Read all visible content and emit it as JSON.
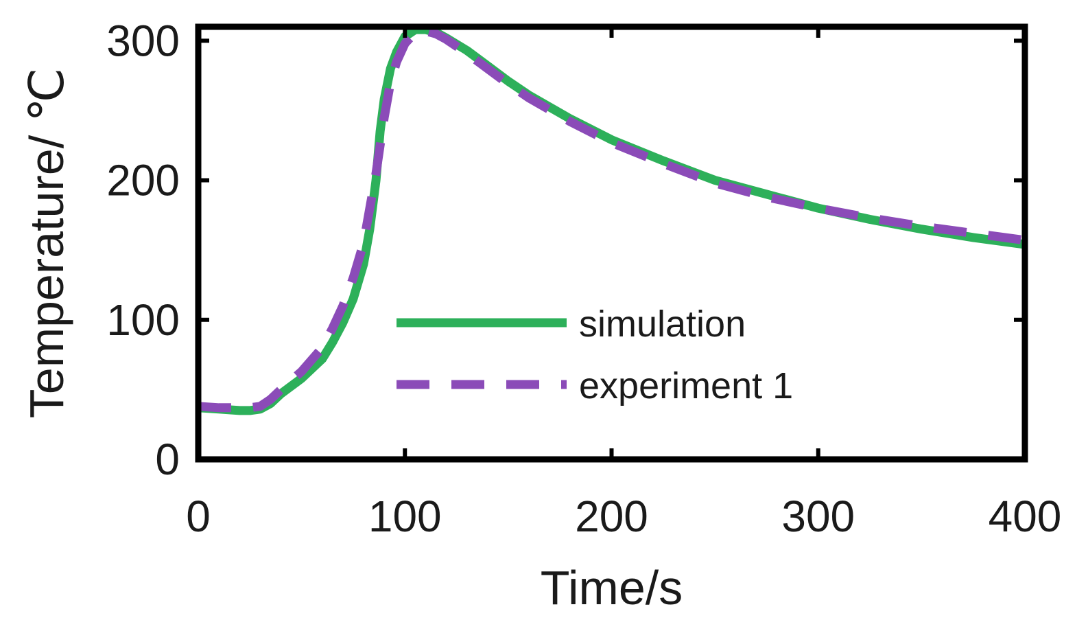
{
  "chart_data": {
    "type": "line",
    "title": "",
    "xlabel": "Time/s",
    "ylabel": "Temperature/ ℃",
    "xlim": [
      0,
      400
    ],
    "ylim": [
      0,
      310
    ],
    "xticks": [
      0,
      100,
      200,
      300,
      400
    ],
    "yticks": [
      0,
      100,
      200,
      300
    ],
    "xtick_labels": [
      "0",
      "100",
      "200",
      "300",
      "400"
    ],
    "ytick_labels": [
      "0",
      "100",
      "200",
      "300"
    ],
    "grid": false,
    "legend_position": "bottom-center",
    "series": [
      {
        "name": "simulation",
        "style": "solid",
        "color": "#2db05a",
        "x": [
          0,
          10,
          20,
          25,
          30,
          35,
          40,
          50,
          60,
          65,
          70,
          75,
          80,
          83,
          86,
          88,
          90,
          93,
          96,
          100,
          105,
          110,
          115,
          120,
          130,
          140,
          150,
          160,
          180,
          200,
          225,
          250,
          275,
          300,
          325,
          350,
          375,
          400
        ],
        "values": [
          37,
          36,
          35,
          35,
          36,
          40,
          47,
          58,
          72,
          84,
          98,
          115,
          140,
          165,
          200,
          235,
          258,
          280,
          292,
          303,
          308,
          308,
          306,
          302,
          293,
          282,
          271,
          261,
          244,
          229,
          214,
          200,
          190,
          180,
          172,
          165,
          159,
          154
        ]
      },
      {
        "name": "experiment 1",
        "style": "dashed",
        "color": "#8b4bb8",
        "x": [
          0,
          10,
          20,
          25,
          30,
          35,
          40,
          50,
          60,
          65,
          70,
          75,
          80,
          83,
          86,
          88,
          90,
          93,
          96,
          100,
          105,
          110,
          115,
          120,
          130,
          140,
          150,
          160,
          180,
          200,
          225,
          250,
          275,
          300,
          325,
          350,
          375,
          400
        ],
        "values": [
          38,
          37,
          37,
          37,
          38,
          43,
          50,
          63,
          80,
          94,
          110,
          130,
          155,
          180,
          205,
          225,
          245,
          270,
          285,
          298,
          306,
          307,
          305,
          301,
          291,
          280,
          269,
          259,
          242,
          227,
          212,
          198,
          188,
          180,
          173,
          167,
          162,
          157
        ]
      }
    ]
  }
}
